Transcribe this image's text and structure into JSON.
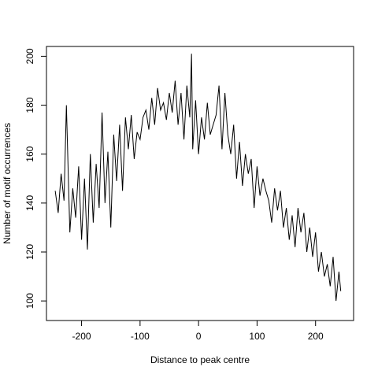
{
  "chart_data": {
    "type": "line",
    "title": "",
    "xlabel": "Distance to peak centre",
    "ylabel": "Number of motif occurrences",
    "xlim": [
      -260,
      265
    ],
    "ylim": [
      92,
      204
    ],
    "xticks": [
      -200,
      -100,
      0,
      100,
      200
    ],
    "yticks": [
      100,
      120,
      140,
      160,
      180,
      200
    ],
    "grid": false,
    "legend": "none",
    "color": "#000000",
    "series": [
      {
        "x": [
          -245,
          -240,
          -235,
          -230,
          -226,
          -220,
          -215,
          -210,
          -205,
          -200,
          -195,
          -190,
          -185,
          -180,
          -175,
          -170,
          -165,
          -160,
          -155,
          -150,
          -145,
          -140,
          -135,
          -130,
          -125,
          -120,
          -115,
          -110,
          -105,
          -100,
          -95,
          -90,
          -85,
          -80,
          -75,
          -70,
          -65,
          -60,
          -55,
          -50,
          -45,
          -40,
          -35,
          -30,
          -25,
          -20,
          -15,
          -12,
          -10,
          -5,
          0,
          5,
          10,
          15,
          20,
          25,
          30,
          35,
          40,
          45,
          50,
          55,
          60,
          65,
          70,
          75,
          80,
          85,
          90,
          95,
          100,
          105,
          110,
          115,
          120,
          125,
          130,
          135,
          140,
          145,
          150,
          155,
          160,
          165,
          170,
          175,
          180,
          185,
          190,
          195,
          200,
          205,
          210,
          215,
          220,
          225,
          230,
          235,
          240,
          243
        ],
        "values": [
          145,
          136,
          152,
          141,
          180,
          128,
          146,
          134,
          155,
          125,
          150,
          121,
          160,
          132,
          156,
          138,
          177,
          140,
          161,
          130,
          168,
          149,
          172,
          145,
          175,
          162,
          176,
          158,
          169,
          166,
          175,
          178,
          170,
          183,
          172,
          187,
          178,
          181,
          174,
          185,
          177,
          190,
          172,
          185,
          166,
          188,
          175,
          201,
          162,
          182,
          160,
          175,
          166,
          181,
          168,
          172,
          176,
          188,
          162,
          185,
          168,
          160,
          172,
          150,
          165,
          147,
          160,
          152,
          158,
          138,
          155,
          143,
          150,
          145,
          141,
          132,
          146,
          137,
          145,
          130,
          138,
          125,
          135,
          122,
          138,
          128,
          136,
          120,
          130,
          118,
          128,
          112,
          120,
          110,
          115,
          106,
          118,
          100,
          112,
          104
        ]
      }
    ]
  }
}
